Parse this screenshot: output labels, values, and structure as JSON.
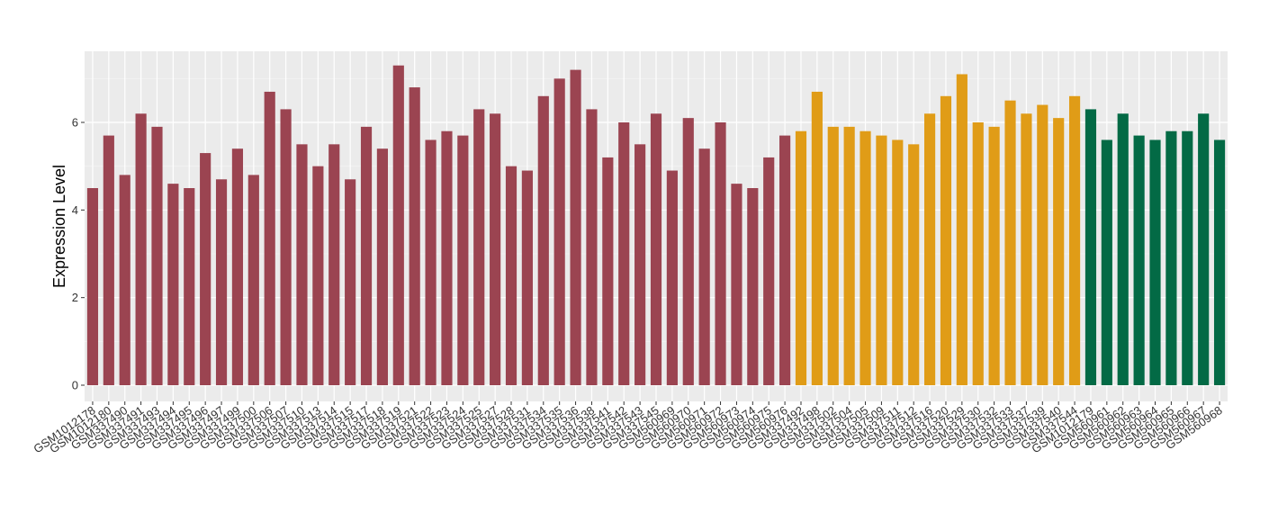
{
  "chart_data": {
    "type": "bar",
    "title": "",
    "xlabel": "",
    "ylabel": "Expression Level",
    "ylim": [
      0,
      7.6
    ],
    "yticks": [
      0,
      2,
      4,
      6
    ],
    "grid": true,
    "legend": "none",
    "colors": [
      "#9b4451",
      "#e09c17",
      "#036a45"
    ],
    "categories": [
      "GSM1012178",
      "GSM1012180",
      "GSM337490",
      "GSM337491",
      "GSM337493",
      "GSM337494",
      "GSM337495",
      "GSM337496",
      "GSM337497",
      "GSM337499",
      "GSM337500",
      "GSM337506",
      "GSM337507",
      "GSM337510",
      "GSM337513",
      "GSM337514",
      "GSM337515",
      "GSM337517",
      "GSM337518",
      "GSM337519",
      "GSM337521",
      "GSM337522",
      "GSM337523",
      "GSM337524",
      "GSM337525",
      "GSM337527",
      "GSM337528",
      "GSM337531",
      "GSM337534",
      "GSM337535",
      "GSM337536",
      "GSM337538",
      "GSM337541",
      "GSM337542",
      "GSM337543",
      "GSM337545",
      "GSM560969",
      "GSM560970",
      "GSM560971",
      "GSM560972",
      "GSM560973",
      "GSM560974",
      "GSM560975",
      "GSM560976",
      "GSM337492",
      "GSM337498",
      "GSM337502",
      "GSM337504",
      "GSM337505",
      "GSM337509",
      "GSM337511",
      "GSM337512",
      "GSM337516",
      "GSM337520",
      "GSM337529",
      "GSM337530",
      "GSM337532",
      "GSM337533",
      "GSM337537",
      "GSM337539",
      "GSM337540",
      "GSM337544",
      "GSM1012179",
      "GSM560961",
      "GSM560962",
      "GSM560963",
      "GSM560964",
      "GSM560965",
      "GSM560966",
      "GSM560967",
      "GSM560968"
    ],
    "values": [
      4.5,
      5.7,
      4.8,
      6.2,
      5.9,
      4.6,
      4.5,
      5.3,
      4.7,
      5.4,
      4.8,
      6.7,
      6.3,
      5.5,
      5.0,
      5.5,
      4.7,
      5.9,
      5.4,
      7.3,
      6.8,
      5.6,
      5.8,
      5.7,
      6.3,
      6.2,
      5.0,
      4.9,
      6.6,
      7.0,
      7.2,
      6.3,
      5.2,
      6.0,
      5.5,
      6.2,
      4.9,
      6.1,
      5.4,
      6.0,
      4.6,
      4.5,
      5.2,
      5.7,
      5.8,
      6.7,
      5.9,
      5.9,
      5.8,
      5.7,
      5.6,
      5.5,
      6.2,
      6.6,
      7.1,
      6.0,
      5.9,
      6.5,
      6.2,
      6.4,
      6.1,
      6.6,
      6.3,
      5.6,
      6.2,
      5.7,
      5.6,
      5.8,
      5.8,
      6.2,
      5.6
    ],
    "groups": [
      0,
      0,
      0,
      0,
      0,
      0,
      0,
      0,
      0,
      0,
      0,
      0,
      0,
      0,
      0,
      0,
      0,
      0,
      0,
      0,
      0,
      0,
      0,
      0,
      0,
      0,
      0,
      0,
      0,
      0,
      0,
      0,
      0,
      0,
      0,
      0,
      0,
      0,
      0,
      0,
      0,
      0,
      0,
      0,
      1,
      1,
      1,
      1,
      1,
      1,
      1,
      1,
      1,
      1,
      1,
      1,
      1,
      1,
      1,
      1,
      1,
      1,
      2,
      2,
      2,
      2,
      2,
      2,
      2,
      2,
      2
    ]
  }
}
